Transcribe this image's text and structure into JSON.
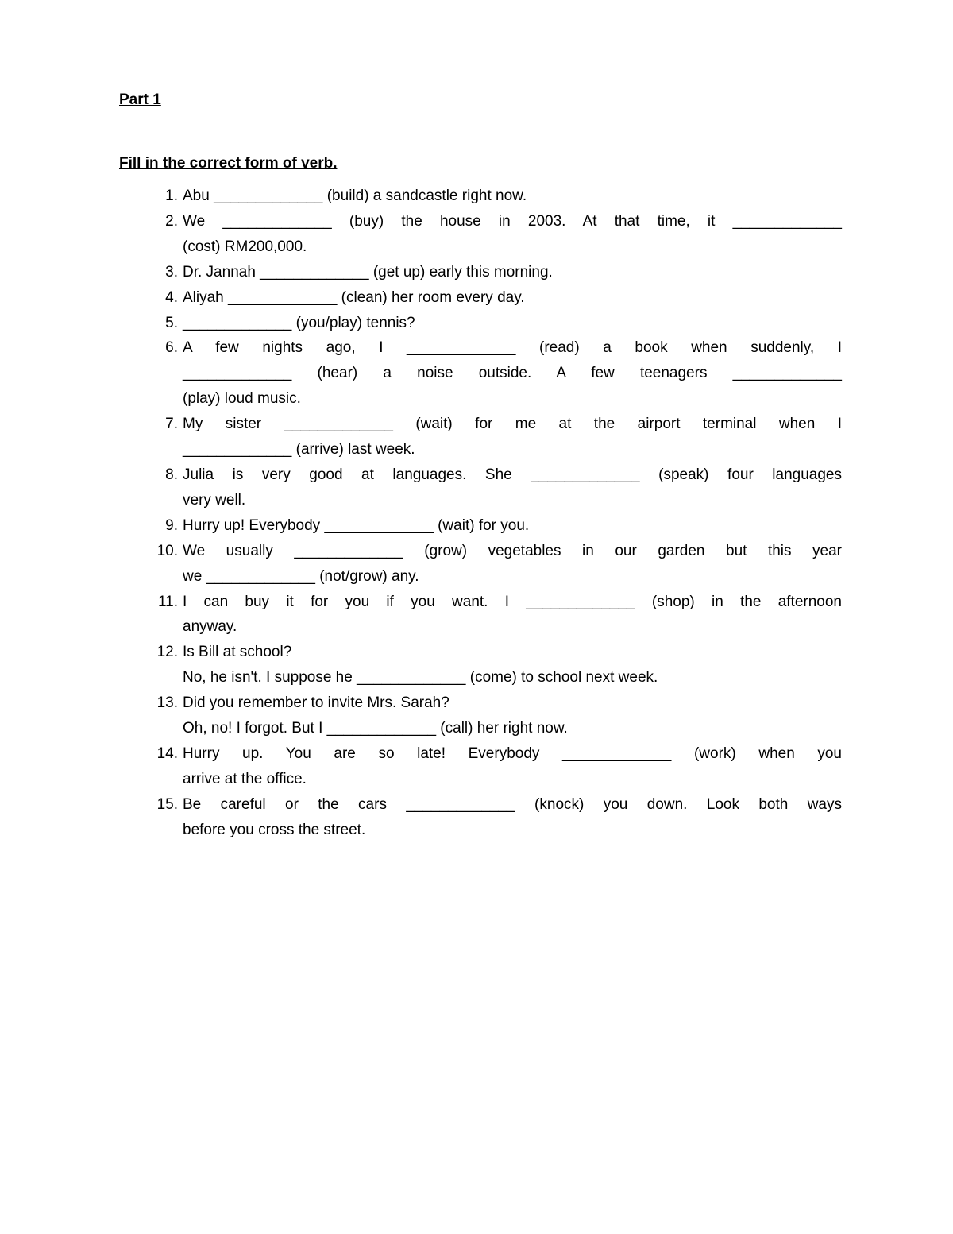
{
  "title": "Part 1",
  "instruction": "Fill in the correct form of verb.",
  "blank": "_____________",
  "questions": [
    {
      "n": "1.",
      "lines": [
        "Abu _____________ (build) a sandcastle right now."
      ]
    },
    {
      "n": "2.",
      "lines": [
        "We _____________ (buy) the house in 2003. At that time, it _____________",
        "(cost) RM200,000."
      ]
    },
    {
      "n": "3.",
      "lines": [
        "Dr. Jannah _____________ (get up) early this morning."
      ]
    },
    {
      "n": "4.",
      "lines": [
        "Aliyah _____________ (clean) her room every day."
      ]
    },
    {
      "n": "5.",
      "lines": [
        "_____________ (you/play) tennis?"
      ]
    },
    {
      "n": "6.",
      "lines": [
        "A  few  nights  ago,  I  _____________  (read)  a  book  when  suddenly,  I",
        "_____________  (hear)  a  noise  outside.  A  few  teenagers  _____________",
        "(play) loud music."
      ]
    },
    {
      "n": "7.",
      "lines": [
        "My  sister  _____________  (wait)  for  me  at  the  airport  terminal  when  I",
        "_____________ (arrive) last week."
      ]
    },
    {
      "n": "8.",
      "lines": [
        "Julia is very good at languages. She _____________ (speak) four languages",
        "very well."
      ]
    },
    {
      "n": "9.",
      "lines": [
        "Hurry up! Everybody _____________ (wait) for you."
      ]
    },
    {
      "n": "10.",
      "lines": [
        "We usually _____________ (grow) vegetables in our garden but this year",
        "we _____________ (not/grow) any."
      ]
    },
    {
      "n": "11.",
      "lines": [
        "I can buy it for you if you want. I _____________ (shop) in the afternoon",
        "anyway."
      ]
    },
    {
      "n": "12.",
      "lines": [
        "Is Bill at school?",
        "No, he isn't. I suppose he _____________ (come) to school next week."
      ]
    },
    {
      "n": "13.",
      "lines": [
        "Did you remember to invite Mrs. Sarah?",
        "Oh, no! I forgot. But I _____________ (call) her right now."
      ]
    },
    {
      "n": "14.",
      "lines": [
        "Hurry up.  You are so late!  Everybody _____________ (work) when you",
        "arrive at the office."
      ]
    },
    {
      "n": "15.",
      "lines": [
        "Be careful or the cars _____________ (knock) you down. Look both ways",
        "before you cross the street."
      ]
    }
  ],
  "justify_map": {
    "1": [
      0
    ],
    "5": [
      0,
      1
    ],
    "6": [
      0
    ],
    "7": [
      0
    ],
    "9": [
      0
    ],
    "10": [
      0
    ],
    "13": [
      0
    ],
    "14": [
      0
    ]
  },
  "colors": {
    "background": "#ffffff",
    "text": "#000000"
  },
  "font": {
    "family": "Verdana",
    "size_pt": 14,
    "weight_title": "bold"
  }
}
